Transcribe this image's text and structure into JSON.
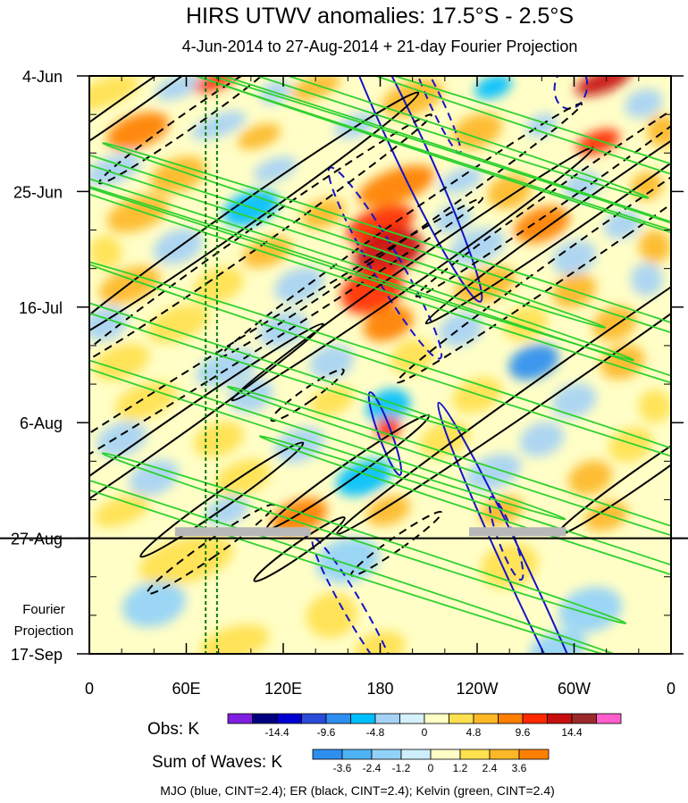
{
  "chart_data": {
    "type": "heatmap",
    "title": "HIRS UTWV anomalies: 17.5°S - 2.5°S",
    "subtitle": "4-Jun-2014 to 27-Aug-2014 + 21-day Fourier Projection",
    "x_ticks": [
      {
        "lon": 0,
        "label": "0"
      },
      {
        "lon": 60,
        "label": "60E"
      },
      {
        "lon": 120,
        "label": "120E"
      },
      {
        "lon": 180,
        "label": "180"
      },
      {
        "lon": 240,
        "label": "120W"
      },
      {
        "lon": 300,
        "label": "60W"
      },
      {
        "lon": 360,
        "label": "0"
      }
    ],
    "x_range": [
      0,
      360
    ],
    "y_range_days": [
      0,
      105
    ],
    "y_ticks": [
      {
        "day": 0,
        "label": "4-Jun"
      },
      {
        "day": 21,
        "label": "25-Jun"
      },
      {
        "day": 42,
        "label": "16-Jul"
      },
      {
        "day": 63,
        "label": "6-Aug"
      },
      {
        "day": 84,
        "label": "27-Aug"
      },
      {
        "day": 105,
        "label": "17-Sep"
      }
    ],
    "forecast_label": [
      "Fourier",
      "Projection"
    ],
    "projection_start_day": 84,
    "dashed_meridians_lon": [
      72,
      79
    ],
    "missing_data_bars": [
      {
        "lon0": 53,
        "lon1": 137,
        "day": 82
      },
      {
        "lon0": 235,
        "lon1": 295,
        "day": 82
      }
    ],
    "obs_colorbar": {
      "title": "Obs: K",
      "colors": [
        "#7f1fe0",
        "#000080",
        "#0000d2",
        "#2b4bd9",
        "#2e8ef0",
        "#00bfff",
        "#a6d3f5",
        "#d5f1fc",
        "#fffec6",
        "#ffe14f",
        "#fdb827",
        "#ff7f00",
        "#ff2a00",
        "#c80f0f",
        "#9b2a2a",
        "#ff5ecc"
      ],
      "labels": [
        "-14.4",
        "-9.6",
        "-4.8",
        "0",
        "4.8",
        "9.6",
        "14.4"
      ]
    },
    "waves_colorbar": {
      "title": "Sum of Waves: K",
      "colors": [
        "#2e8ef0",
        "#4fb2f5",
        "#92d2f8",
        "#cdeefc",
        "#fffec6",
        "#ffe14f",
        "#fdb827",
        "#ff7f00"
      ],
      "labels": [
        "-3.6",
        "-2.4",
        "-1.2",
        "0",
        "1.2",
        "2.4",
        "3.6"
      ]
    },
    "footer": "MJO (blue, CINT=2.4); ER (black, CINT=2.4); Kelvin (green, CINT=2.4)",
    "anomaly_blobs": [
      {
        "lon": 10,
        "day": 3,
        "v": 2.5,
        "a": 22,
        "b": 2.5,
        "ang": -20
      },
      {
        "lon": 55,
        "day": 2,
        "v": -3,
        "a": 15,
        "b": 2,
        "ang": -20
      },
      {
        "lon": 78,
        "day": 1,
        "v": 11,
        "a": 14,
        "b": 1.5,
        "ang": -20
      },
      {
        "lon": 115,
        "day": 3,
        "v": -4,
        "a": 10,
        "b": 2,
        "ang": -20
      },
      {
        "lon": 140,
        "day": 2,
        "v": 6,
        "a": 16,
        "b": 2,
        "ang": -20
      },
      {
        "lon": 200,
        "day": 4,
        "v": 5,
        "a": 20,
        "b": 3,
        "ang": -20
      },
      {
        "lon": 250,
        "day": 2,
        "v": -5,
        "a": 12,
        "b": 2,
        "ang": -20
      },
      {
        "lon": 318,
        "day": 1,
        "v": 12,
        "a": 18,
        "b": 2,
        "ang": -20
      },
      {
        "lon": 343,
        "day": 5,
        "v": -4,
        "a": 12,
        "b": 2.5,
        "ang": -20
      },
      {
        "lon": 30,
        "day": 10,
        "v": 8,
        "a": 20,
        "b": 3,
        "ang": -20
      },
      {
        "lon": 80,
        "day": 9,
        "v": -3,
        "a": 18,
        "b": 2,
        "ang": -20
      },
      {
        "lon": 105,
        "day": 11,
        "v": 5,
        "a": 14,
        "b": 2,
        "ang": -20
      },
      {
        "lon": 165,
        "day": 9,
        "v": -4,
        "a": 14,
        "b": 2,
        "ang": -20
      },
      {
        "lon": 240,
        "day": 10,
        "v": 7,
        "a": 16,
        "b": 3,
        "ang": -20
      },
      {
        "lon": 280,
        "day": 9,
        "v": -4,
        "a": 10,
        "b": 2,
        "ang": -20
      },
      {
        "lon": 315,
        "day": 12,
        "v": 11,
        "a": 14,
        "b": 2,
        "ang": -20
      },
      {
        "lon": 355,
        "day": 10,
        "v": 6,
        "a": 10,
        "b": 3,
        "ang": -20
      },
      {
        "lon": 15,
        "day": 17,
        "v": -3,
        "a": 18,
        "b": 2.5,
        "ang": -20
      },
      {
        "lon": 55,
        "day": 18,
        "v": 6,
        "a": 18,
        "b": 3,
        "ang": -20
      },
      {
        "lon": 115,
        "day": 17,
        "v": -3,
        "a": 14,
        "b": 2,
        "ang": -20
      },
      {
        "lon": 190,
        "day": 20,
        "v": 8,
        "a": 25,
        "b": 3,
        "ang": -20
      },
      {
        "lon": 230,
        "day": 19,
        "v": -3,
        "a": 14,
        "b": 2,
        "ang": -20
      },
      {
        "lon": 260,
        "day": 21,
        "v": 6,
        "a": 14,
        "b": 3,
        "ang": -20
      },
      {
        "lon": 305,
        "day": 20,
        "v": -4,
        "a": 12,
        "b": 2.5,
        "ang": -20
      },
      {
        "lon": 345,
        "day": 20,
        "v": 5,
        "a": 10,
        "b": 2.5,
        "ang": -20
      },
      {
        "lon": 30,
        "day": 25,
        "v": 5,
        "a": 20,
        "b": 3,
        "ang": -20
      },
      {
        "lon": 100,
        "day": 24,
        "v": -6,
        "a": 18,
        "b": 3,
        "ang": -20
      },
      {
        "lon": 145,
        "day": 25,
        "v": 5,
        "a": 14,
        "b": 2.5,
        "ang": -20
      },
      {
        "lon": 180,
        "day": 27,
        "v": 11,
        "a": 22,
        "b": 3,
        "ang": -20
      },
      {
        "lon": 225,
        "day": 26,
        "v": -4,
        "a": 12,
        "b": 2.5,
        "ang": -20
      },
      {
        "lon": 280,
        "day": 27,
        "v": 8,
        "a": 18,
        "b": 3,
        "ang": -20
      },
      {
        "lon": 330,
        "day": 27,
        "v": -3,
        "a": 12,
        "b": 2.5,
        "ang": -20
      },
      {
        "lon": 10,
        "day": 32,
        "v": 4,
        "a": 10,
        "b": 3,
        "ang": -20
      },
      {
        "lon": 55,
        "day": 31,
        "v": -3,
        "a": 16,
        "b": 3,
        "ang": -20
      },
      {
        "lon": 110,
        "day": 32,
        "v": 5,
        "a": 16,
        "b": 2.5,
        "ang": -20
      },
      {
        "lon": 185,
        "day": 32,
        "v": 14,
        "a": 22,
        "b": 4,
        "ang": -20
      },
      {
        "lon": 240,
        "day": 31,
        "v": -4,
        "a": 18,
        "b": 3,
        "ang": -20
      },
      {
        "lon": 300,
        "day": 33,
        "v": -4,
        "a": 14,
        "b": 3,
        "ang": -20
      },
      {
        "lon": 350,
        "day": 31,
        "v": 5,
        "a": 10,
        "b": 3,
        "ang": -20
      },
      {
        "lon": 25,
        "day": 38,
        "v": 5,
        "a": 20,
        "b": 3,
        "ang": -20
      },
      {
        "lon": 80,
        "day": 38,
        "v": 3,
        "a": 16,
        "b": 3,
        "ang": -20
      },
      {
        "lon": 130,
        "day": 38,
        "v": -4,
        "a": 16,
        "b": 3,
        "ang": -20
      },
      {
        "lon": 175,
        "day": 39,
        "v": 10,
        "a": 20,
        "b": 4,
        "ang": -20
      },
      {
        "lon": 245,
        "day": 38,
        "v": 6,
        "a": 20,
        "b": 3,
        "ang": -20
      },
      {
        "lon": 300,
        "day": 39,
        "v": 5,
        "a": 14,
        "b": 3,
        "ang": -20
      },
      {
        "lon": 345,
        "day": 37,
        "v": -3,
        "a": 10,
        "b": 3,
        "ang": -20
      },
      {
        "lon": 10,
        "day": 45,
        "v": -4,
        "a": 14,
        "b": 3,
        "ang": -20
      },
      {
        "lon": 55,
        "day": 45,
        "v": 4,
        "a": 20,
        "b": 3,
        "ang": -20
      },
      {
        "lon": 120,
        "day": 46,
        "v": -4,
        "a": 16,
        "b": 3,
        "ang": -20
      },
      {
        "lon": 185,
        "day": 45,
        "v": 8,
        "a": 16,
        "b": 3,
        "ang": -20
      },
      {
        "lon": 230,
        "day": 46,
        "v": -3,
        "a": 14,
        "b": 3,
        "ang": -20
      },
      {
        "lon": 270,
        "day": 45,
        "v": 4,
        "a": 14,
        "b": 3,
        "ang": -20
      },
      {
        "lon": 325,
        "day": 45,
        "v": 7,
        "a": 14,
        "b": 3,
        "ang": -20
      },
      {
        "lon": 20,
        "day": 52,
        "v": 3,
        "a": 18,
        "b": 3,
        "ang": -20
      },
      {
        "lon": 85,
        "day": 53,
        "v": -3,
        "a": 20,
        "b": 3,
        "ang": -20
      },
      {
        "lon": 150,
        "day": 52,
        "v": -4,
        "a": 14,
        "b": 3,
        "ang": -20
      },
      {
        "lon": 200,
        "day": 51,
        "v": 3,
        "a": 14,
        "b": 3,
        "ang": -20
      },
      {
        "lon": 275,
        "day": 52,
        "v": -8,
        "a": 16,
        "b": 3,
        "ang": -20
      },
      {
        "lon": 330,
        "day": 52,
        "v": 5,
        "a": 14,
        "b": 3,
        "ang": -20
      },
      {
        "lon": 35,
        "day": 59,
        "v": 4,
        "a": 20,
        "b": 3,
        "ang": -20
      },
      {
        "lon": 100,
        "day": 58,
        "v": -3,
        "a": 14,
        "b": 3,
        "ang": -20
      },
      {
        "lon": 150,
        "day": 59,
        "v": 3,
        "a": 14,
        "b": 2.5,
        "ang": -20
      },
      {
        "lon": 185,
        "day": 60,
        "v": -5,
        "a": 14,
        "b": 3,
        "ang": -20
      },
      {
        "lon": 240,
        "day": 58,
        "v": 4,
        "a": 16,
        "b": 3,
        "ang": -20
      },
      {
        "lon": 300,
        "day": 59,
        "v": -3,
        "a": 14,
        "b": 3,
        "ang": -20
      },
      {
        "lon": 350,
        "day": 60,
        "v": 3,
        "a": 10,
        "b": 3,
        "ang": -20
      },
      {
        "lon": 20,
        "day": 66,
        "v": -3,
        "a": 16,
        "b": 3,
        "ang": -20
      },
      {
        "lon": 80,
        "day": 66,
        "v": 4,
        "a": 16,
        "b": 3,
        "ang": -20
      },
      {
        "lon": 130,
        "day": 67,
        "v": -4,
        "a": 16,
        "b": 3,
        "ang": -20
      },
      {
        "lon": 185,
        "day": 64,
        "v": 10,
        "a": 8,
        "b": 2,
        "ang": -20
      },
      {
        "lon": 220,
        "day": 66,
        "v": 4,
        "a": 16,
        "b": 3,
        "ang": -20
      },
      {
        "lon": 280,
        "day": 66,
        "v": -4,
        "a": 14,
        "b": 3,
        "ang": -20
      },
      {
        "lon": 335,
        "day": 67,
        "v": 4,
        "a": 14,
        "b": 3,
        "ang": -20
      },
      {
        "lon": 40,
        "day": 73,
        "v": -3,
        "a": 16,
        "b": 3,
        "ang": -20
      },
      {
        "lon": 95,
        "day": 73,
        "v": 4,
        "a": 18,
        "b": 3,
        "ang": -20
      },
      {
        "lon": 170,
        "day": 73,
        "v": -5,
        "a": 18,
        "b": 3,
        "ang": -20
      },
      {
        "lon": 250,
        "day": 72,
        "v": -4,
        "a": 18,
        "b": 3,
        "ang": -20
      },
      {
        "lon": 310,
        "day": 73,
        "v": 5,
        "a": 14,
        "b": 3,
        "ang": -20
      },
      {
        "lon": 20,
        "day": 79,
        "v": 3,
        "a": 18,
        "b": 2.5,
        "ang": -20
      },
      {
        "lon": 85,
        "day": 79,
        "v": -3,
        "a": 14,
        "b": 2.5,
        "ang": -20
      },
      {
        "lon": 130,
        "day": 80,
        "v": 8,
        "a": 18,
        "b": 3,
        "ang": -20
      },
      {
        "lon": 185,
        "day": 79,
        "v": 5,
        "a": 14,
        "b": 2.5,
        "ang": -20
      },
      {
        "lon": 255,
        "day": 79,
        "v": 6,
        "a": 14,
        "b": 2.5,
        "ang": -20
      },
      {
        "lon": 320,
        "day": 80,
        "v": 7,
        "a": 14,
        "b": 2.5,
        "ang": -20
      },
      {
        "lon": 60,
        "day": 88,
        "v": 1.3,
        "a": 30,
        "b": 4,
        "ang": -15
      },
      {
        "lon": 160,
        "day": 88,
        "v": -1.5,
        "a": 20,
        "b": 4,
        "ang": -15
      },
      {
        "lon": 260,
        "day": 89,
        "v": 1.5,
        "a": 18,
        "b": 4,
        "ang": -15
      },
      {
        "lon": 40,
        "day": 96,
        "v": -1.4,
        "a": 20,
        "b": 4,
        "ang": -15
      },
      {
        "lon": 150,
        "day": 98,
        "v": 1.3,
        "a": 16,
        "b": 4,
        "ang": -15
      },
      {
        "lon": 310,
        "day": 97,
        "v": -1.4,
        "a": 20,
        "b": 4,
        "ang": -15
      },
      {
        "lon": 90,
        "day": 103,
        "v": 1.6,
        "a": 22,
        "b": 3,
        "ang": -15
      },
      {
        "lon": 180,
        "day": 104,
        "v": 1.4,
        "a": 16,
        "b": 3,
        "ang": -15
      },
      {
        "lon": 290,
        "day": 104,
        "v": -1.5,
        "a": 18,
        "b": 3,
        "ang": -15
      }
    ],
    "mjo_contours": [
      {
        "lon": 196,
        "day": 12,
        "a": 10,
        "b": 32,
        "ang": -25,
        "dash": false
      },
      {
        "lon": 268,
        "day": 92,
        "a": 7,
        "b": 36,
        "ang": -25,
        "dash": false
      },
      {
        "lon": 183,
        "day": 65,
        "a": 4,
        "b": 8,
        "ang": -20,
        "dash": false
      },
      {
        "lon": 183,
        "day": 34,
        "a": 9,
        "b": 20,
        "ang": -30,
        "dash": true
      },
      {
        "lon": 258,
        "day": 84,
        "a": 5,
        "b": 8,
        "ang": -20,
        "dash": true
      },
      {
        "lon": 164,
        "day": 97,
        "a": 6,
        "b": 15,
        "ang": -30,
        "dash": true
      },
      {
        "lon": 215,
        "day": 5,
        "a": 4,
        "b": 10,
        "ang": -25,
        "dash": true
      },
      {
        "lon": 298,
        "day": 2,
        "a": 10,
        "b": 4,
        "ang": 10,
        "dash": true
      }
    ],
    "er_contours": [
      {
        "lon": 25,
        "day": 5,
        "a": 5,
        "b": 26,
        "ang": 55,
        "dash": false
      },
      {
        "lon": 62,
        "day": 8,
        "a": 5,
        "b": 20,
        "ang": 55,
        "dash": true
      },
      {
        "lon": 92,
        "day": 26,
        "a": 7,
        "b": 40,
        "ang": 55,
        "dash": false
      },
      {
        "lon": 100,
        "day": 30,
        "a": 6,
        "b": 40,
        "ang": 55,
        "dash": true
      },
      {
        "lon": 33,
        "day": 68,
        "a": 6,
        "b": 40,
        "ang": 55,
        "dash": false
      },
      {
        "lon": 70,
        "day": 54,
        "a": 6,
        "b": 60,
        "ang": 58,
        "dash": true
      },
      {
        "lon": 82,
        "day": 77,
        "a": 5,
        "b": 18,
        "ang": 55,
        "dash": false
      },
      {
        "lon": 75,
        "day": 86,
        "a": 5,
        "b": 14,
        "ang": 55,
        "dash": true
      },
      {
        "lon": 200,
        "day": 36,
        "a": 6,
        "b": 40,
        "ang": 55,
        "dash": false
      },
      {
        "lon": 193,
        "day": 28,
        "a": 6,
        "b": 40,
        "ang": 55,
        "dash": true
      },
      {
        "lon": 320,
        "day": 22,
        "a": 6,
        "b": 40,
        "ang": 55,
        "dash": false
      },
      {
        "lon": 330,
        "day": 27,
        "a": 7,
        "b": 50,
        "ang": 55,
        "dash": true
      },
      {
        "lon": 315,
        "day": 50,
        "a": 7,
        "b": 58,
        "ang": 55,
        "dash": false
      },
      {
        "lon": 300,
        "day": 20,
        "a": 5,
        "b": 35,
        "ang": 55,
        "dash": true
      },
      {
        "lon": 345,
        "day": 72,
        "a": 5,
        "b": 20,
        "ang": 55,
        "dash": false
      },
      {
        "lon": 160,
        "day": 72,
        "a": 5,
        "b": 18,
        "ang": 55,
        "dash": false
      },
      {
        "lon": 130,
        "day": 86,
        "a": 4,
        "b": 10,
        "ang": 55,
        "dash": false
      },
      {
        "lon": 190,
        "day": 85,
        "a": 4,
        "b": 10,
        "ang": 55,
        "dash": true
      },
      {
        "lon": 135,
        "day": 58,
        "a": 4,
        "b": 8,
        "ang": 55,
        "dash": true
      }
    ],
    "kelvin_contours": [
      {
        "lon": 145,
        "day": 3,
        "a": 3,
        "b": 62,
        "ang": -72
      },
      {
        "lon": 200,
        "day": 12,
        "a": 3,
        "b": 80,
        "ang": -72
      },
      {
        "lon": 60,
        "day": 21,
        "a": 3,
        "b": 80,
        "ang": -72
      },
      {
        "lon": 270,
        "day": 19,
        "a": 3,
        "b": 70,
        "ang": -72
      },
      {
        "lon": 340,
        "day": 15,
        "a": 3,
        "b": 60,
        "ang": -72
      },
      {
        "lon": 110,
        "day": 30,
        "a": 3,
        "b": 70,
        "ang": -72
      },
      {
        "lon": 170,
        "day": 37,
        "a": 3,
        "b": 80,
        "ang": -72
      },
      {
        "lon": 300,
        "day": 40,
        "a": 3,
        "b": 90,
        "ang": -72
      },
      {
        "lon": 40,
        "day": 46,
        "a": 3,
        "b": 60,
        "ang": -72
      },
      {
        "lon": 220,
        "day": 55,
        "a": 3,
        "b": 70,
        "ang": -72
      },
      {
        "lon": 100,
        "day": 62,
        "a": 3,
        "b": 60,
        "ang": -72
      },
      {
        "lon": 280,
        "day": 75,
        "a": 3,
        "b": 60,
        "ang": -72
      },
      {
        "lon": 80,
        "day": 82,
        "a": 3,
        "b": 80,
        "ang": -72
      },
      {
        "lon": 170,
        "day": 84,
        "a": 3,
        "b": 50,
        "ang": -72
      },
      {
        "lon": 300,
        "day": 84,
        "a": 3,
        "b": 60,
        "ang": -72
      }
    ]
  }
}
